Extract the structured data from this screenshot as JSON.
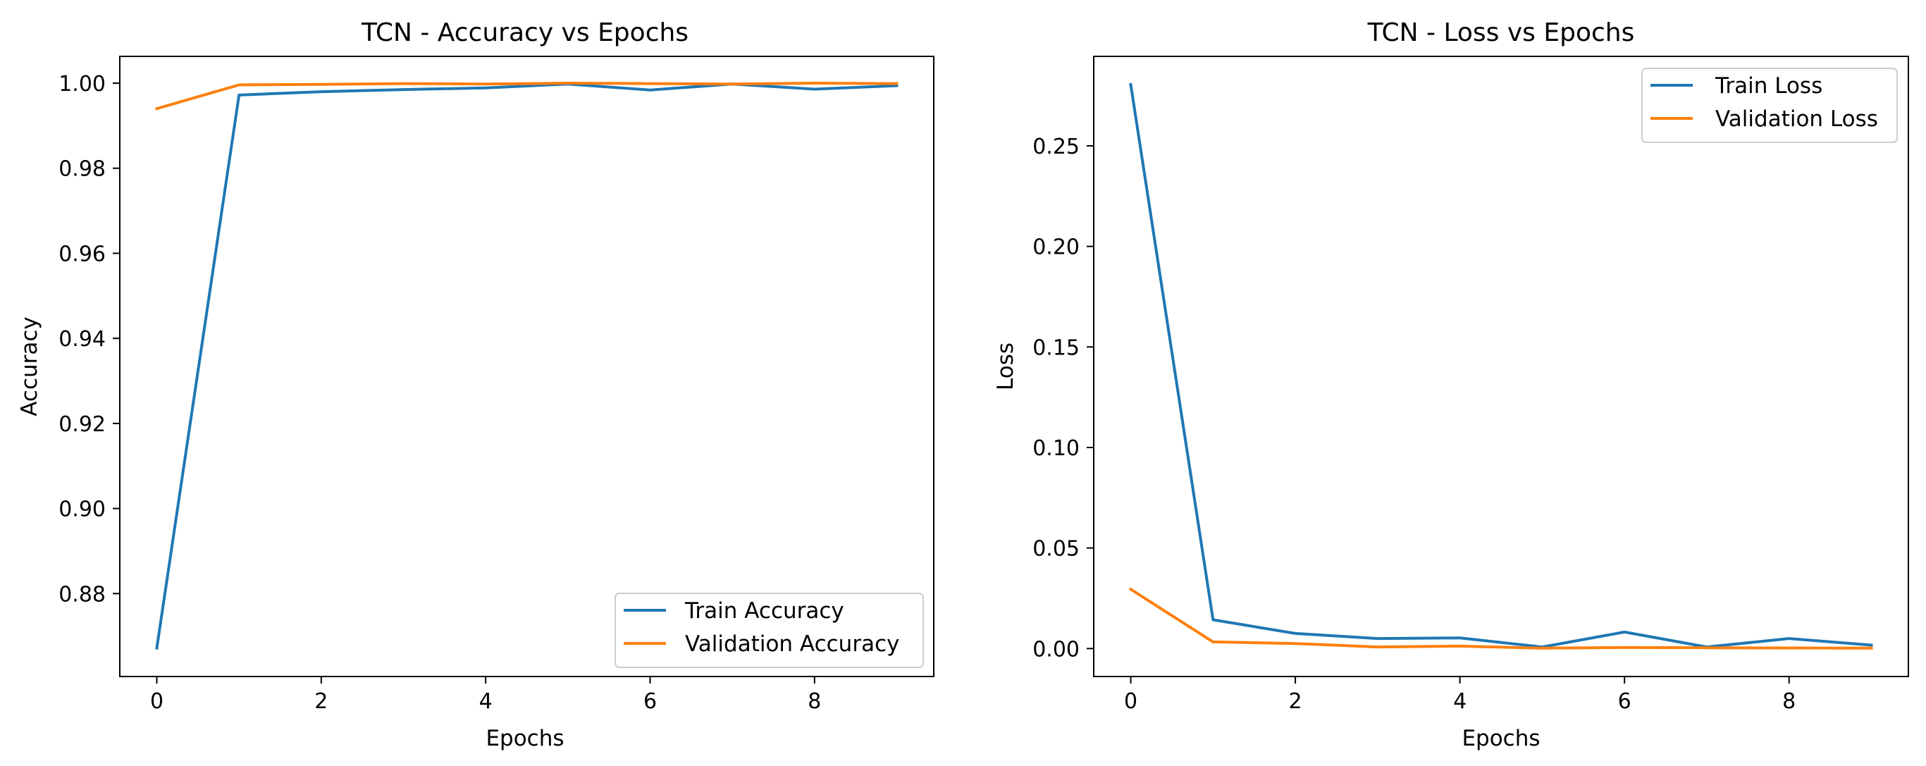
{
  "chart_data": [
    {
      "type": "line",
      "title": "TCN - Accuracy vs Epochs",
      "xlabel": "Epochs",
      "ylabel": "Accuracy",
      "x": [
        0,
        1,
        2,
        3,
        4,
        5,
        6,
        7,
        8,
        9
      ],
      "xlim": [
        -0.45,
        9.45
      ],
      "ylim": [
        0.8605,
        1.0063
      ],
      "xticks": [
        0,
        2,
        4,
        6,
        8
      ],
      "yticks": [
        0.88,
        0.9,
        0.92,
        0.94,
        0.96,
        0.98,
        1.0
      ],
      "ytick_labels": [
        "0.88",
        "0.90",
        "0.92",
        "0.94",
        "0.96",
        "0.98",
        "1.00"
      ],
      "grid": false,
      "legend_position": "lower right",
      "series": [
        {
          "name": "Train Accuracy",
          "color": "#1f77b4",
          "values": [
            0.8672,
            0.9972,
            0.998,
            0.9985,
            0.9989,
            0.9998,
            0.9984,
            0.9998,
            0.9986,
            0.9994
          ]
        },
        {
          "name": "Validation Accuracy",
          "color": "#ff7f0e",
          "values": [
            0.994,
            0.9996,
            0.9997,
            0.9999,
            0.9998,
            1.0,
            0.9999,
            0.9998,
            1.0,
            0.9999
          ]
        }
      ]
    },
    {
      "type": "line",
      "title": "TCN - Loss vs Epochs",
      "xlabel": "Epochs",
      "ylabel": "Loss",
      "x": [
        0,
        1,
        2,
        3,
        4,
        5,
        6,
        7,
        8,
        9
      ],
      "xlim": [
        -0.45,
        9.45
      ],
      "ylim": [
        -0.0139,
        0.2945
      ],
      "xticks": [
        0,
        2,
        4,
        6,
        8
      ],
      "yticks": [
        0.0,
        0.05,
        0.1,
        0.15,
        0.2,
        0.25
      ],
      "ytick_labels": [
        "0.00",
        "0.05",
        "0.10",
        "0.15",
        "0.20",
        "0.25"
      ],
      "grid": false,
      "legend_position": "upper right",
      "series": [
        {
          "name": "Train Loss",
          "color": "#1f77b4",
          "values": [
            0.2805,
            0.0143,
            0.0075,
            0.005,
            0.0053,
            0.0008,
            0.0082,
            0.0008,
            0.005,
            0.0017
          ]
        },
        {
          "name": "Validation Loss",
          "color": "#ff7f0e",
          "values": [
            0.0295,
            0.0033,
            0.0025,
            0.0008,
            0.0012,
            0.0002,
            0.0005,
            0.0004,
            0.0003,
            0.0002
          ]
        }
      ]
    }
  ]
}
